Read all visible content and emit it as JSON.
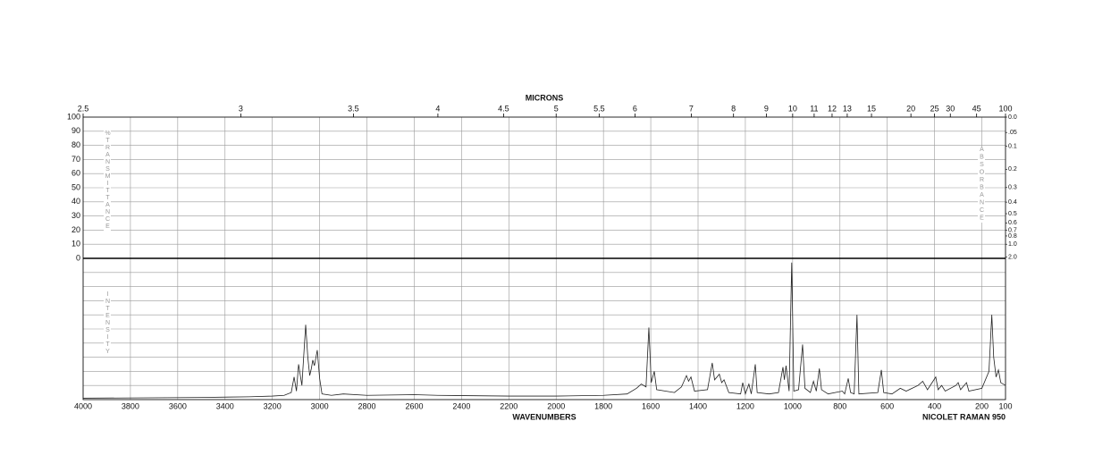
{
  "chart_data": {
    "type": "line",
    "title": "NICOLET RAMAN 950",
    "xlabel": "WAVENUMBERS",
    "x2label": "MICRONS",
    "ylabel": "%TRANSMITTANCE",
    "y2label": "ABSORBANCE",
    "intensity_label": "INTENSITY",
    "xlim": [
      4000,
      100
    ],
    "xticks": [
      4000,
      3800,
      3600,
      3400,
      3200,
      3000,
      2800,
      2600,
      2400,
      2200,
      2000,
      1800,
      1600,
      1400,
      1200,
      1000,
      800,
      600,
      400,
      200,
      100
    ],
    "x2ticks": [
      2.5,
      3,
      3.5,
      4,
      4.5,
      5,
      5.5,
      6,
      7,
      8,
      9,
      10,
      11,
      12,
      13,
      15,
      20,
      25,
      30,
      45,
      100
    ],
    "ylim": [
      0,
      100
    ],
    "yticks": [
      0,
      10,
      20,
      30,
      40,
      50,
      60,
      70,
      80,
      90,
      100
    ],
    "absorbance_ticks": [
      {
        "value": 0,
        "label": "0.0"
      },
      {
        "value": 0.05,
        "label": ".05"
      },
      0.1,
      0.2,
      0.3,
      0.4,
      0.5,
      0.6,
      0.7,
      0.8,
      {
        "value": 1,
        "label": "1.0"
      },
      {
        "value": 2,
        "label": "2.0"
      }
    ],
    "y2lim": [
      0,
      100
    ],
    "grid": true,
    "x": [
      4000,
      3500,
      3300,
      3200,
      3150,
      3120,
      3108,
      3098,
      3089,
      3075,
      3059,
      3050,
      3042,
      3035,
      3029,
      3022,
      3010,
      3000,
      2990,
      2950,
      2900,
      2800,
      2600,
      2500,
      2200,
      2000,
      1800,
      1700,
      1660,
      1640,
      1620,
      1608,
      1598,
      1585,
      1575,
      1500,
      1470,
      1449,
      1440,
      1430,
      1415,
      1360,
      1340,
      1330,
      1310,
      1300,
      1290,
      1270,
      1220,
      1211,
      1200,
      1185,
      1175,
      1158,
      1150,
      1100,
      1060,
      1041,
      1035,
      1028,
      1015,
      1004,
      995,
      975,
      958,
      948,
      925,
      912,
      900,
      887,
      878,
      850,
      790,
      780,
      765,
      755,
      740,
      728,
      720,
      640,
      625,
      615,
      580,
      545,
      520,
      470,
      450,
      430,
      395,
      385,
      370,
      355,
      310,
      300,
      290,
      265,
      255,
      200,
      170,
      158,
      150,
      140,
      130,
      120,
      100
    ],
    "series": [
      {
        "color": "#222222",
        "axis": "y2",
        "values": [
          1,
          1.5,
          2,
          2.5,
          3,
          5,
          16,
          6,
          25,
          10,
          53,
          30,
          17,
          22,
          28,
          24,
          35,
          15,
          4,
          3,
          4,
          3,
          3.5,
          3,
          2.5,
          2.5,
          3,
          4,
          8,
          11,
          9,
          51,
          12,
          20,
          7,
          5,
          9,
          17,
          13,
          16,
          6,
          7,
          26,
          14,
          18,
          12,
          14,
          5,
          4,
          12,
          4,
          11,
          4,
          25,
          5,
          4,
          5,
          23,
          14,
          24,
          6,
          97,
          6,
          7,
          39,
          8,
          5,
          13,
          6,
          22,
          7,
          4,
          6,
          4,
          15,
          5,
          4,
          60,
          4,
          5,
          21,
          5,
          4,
          8,
          6,
          10,
          13,
          7,
          16,
          7,
          10,
          6,
          10,
          12,
          7,
          12,
          6,
          8,
          20,
          60,
          30,
          16,
          21,
          12,
          10
        ]
      }
    ]
  }
}
